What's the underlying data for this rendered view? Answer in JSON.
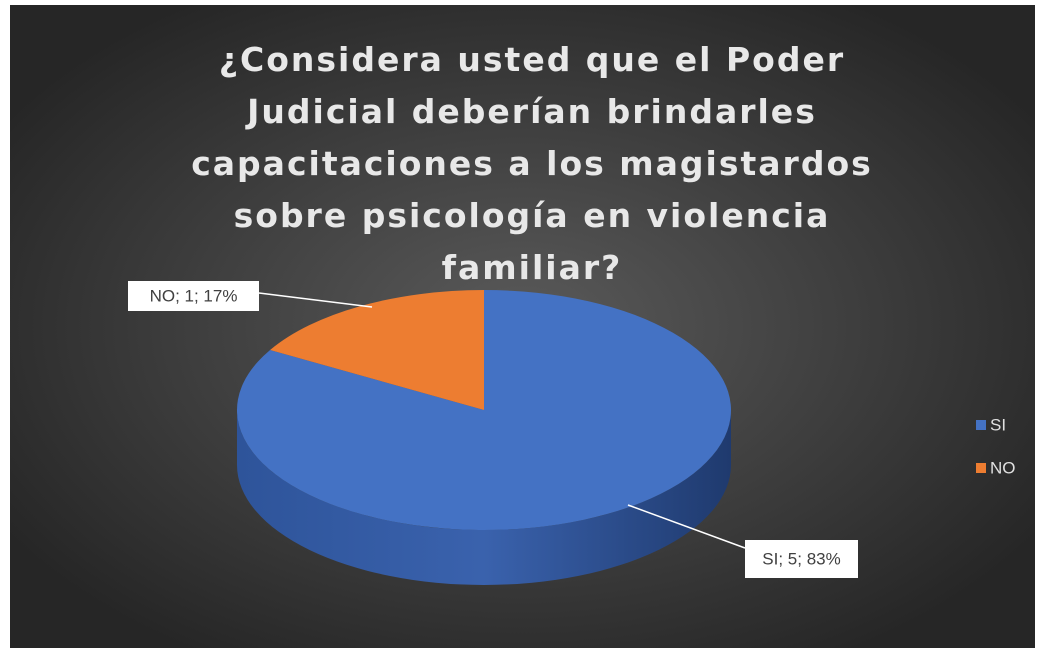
{
  "chart_data": {
    "type": "pie",
    "title": "¿Considera usted que el Poder Judicial deberían brindarles capacitaciones a los magistardos sobre psicología en violencia familiar?",
    "categories": [
      "SI",
      "NO"
    ],
    "values": [
      5,
      1
    ],
    "value_labels": [
      "SI; 5; 83%",
      "NO; 1; 17%"
    ],
    "colors": [
      "#4472c4",
      "#ed7d31"
    ],
    "legend": "right"
  }
}
